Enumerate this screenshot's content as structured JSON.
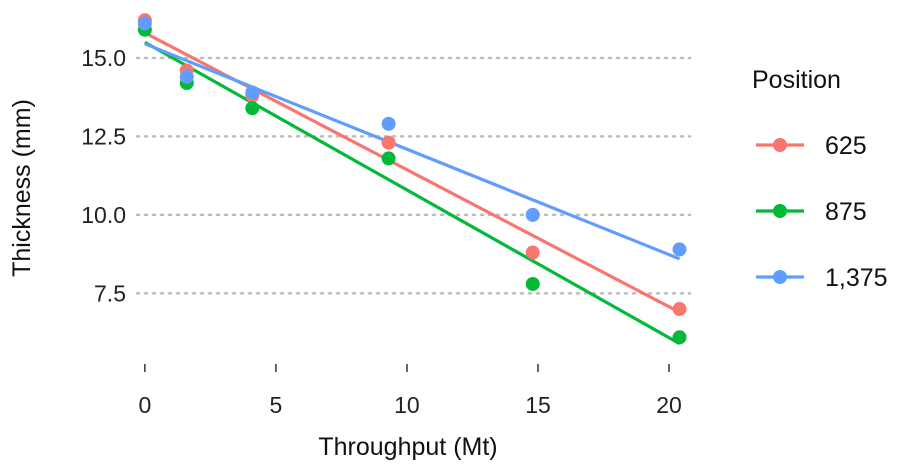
{
  "chart_data": {
    "type": "scatter",
    "xlabel": "Throughput (Mt)",
    "ylabel": "Thickness (mm)",
    "xlim": [
      -0.3,
      20.8
    ],
    "ylim": [
      5.6,
      16.4
    ],
    "xticks": [
      0,
      5,
      10,
      15,
      20
    ],
    "xtick_labels": [
      "0",
      "5",
      "10",
      "15",
      "20"
    ],
    "yticks": [
      7.5,
      10.0,
      12.5,
      15.0
    ],
    "ytick_labels": [
      "7.5",
      "10.0",
      "12.5",
      "15.0"
    ],
    "grid": "horizontal dotted",
    "legend": {
      "title": "Position",
      "placement": "right"
    },
    "series": [
      {
        "name": "625",
        "color": "#F8766D",
        "x": [
          0,
          1.6,
          4.1,
          9.3,
          14.8,
          20.4
        ],
        "y": [
          16.2,
          14.6,
          13.8,
          12.3,
          8.8,
          7.0
        ],
        "fit": [
          [
            0,
            15.8
          ],
          [
            20.4,
            6.9
          ]
        ]
      },
      {
        "name": "875",
        "color": "#00BA38",
        "x": [
          0,
          1.6,
          4.1,
          9.3,
          14.8,
          20.4
        ],
        "y": [
          15.9,
          14.2,
          13.4,
          11.8,
          7.8,
          6.1
        ],
        "fit": [
          [
            0,
            15.5
          ],
          [
            20.4,
            5.9
          ]
        ]
      },
      {
        "name": "1,375",
        "color": "#619CFF",
        "x": [
          0,
          1.6,
          4.1,
          9.3,
          14.8,
          20.4
        ],
        "y": [
          16.1,
          14.4,
          13.9,
          12.9,
          10.0,
          8.9
        ],
        "fit": [
          [
            0,
            15.45
          ],
          [
            20.4,
            8.6
          ]
        ]
      }
    ]
  }
}
